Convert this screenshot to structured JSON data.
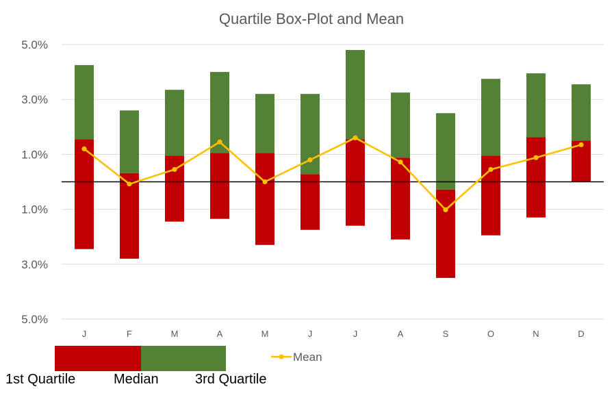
{
  "chart_data": {
    "type": "bar",
    "title": "Quartile Box-Plot and Mean",
    "categories": [
      "J",
      "F",
      "M",
      "A",
      "M",
      "J",
      "J",
      "A",
      "S",
      "O",
      "N",
      "D"
    ],
    "y_tick_labels": [
      "5.0%",
      "3.0%",
      "1.0%",
      "1.0%",
      "3.0%",
      "5.0%"
    ],
    "y_tick_values": [
      5,
      3,
      1,
      -1,
      -3,
      -5
    ],
    "ylim": [
      -5,
      5
    ],
    "grid": true,
    "zero_line": true,
    "series": [
      {
        "name": "1st Quartile",
        "role": "lower-box",
        "color": "#C00000",
        "bottom": [
          -2.45,
          -2.8,
          -1.45,
          -1.35,
          -2.3,
          -1.75,
          -1.6,
          -2.1,
          -3.5,
          -1.95,
          -1.3,
          0.0
        ],
        "top": [
          1.55,
          0.32,
          0.95,
          1.05,
          1.05,
          0.28,
          1.55,
          0.88,
          -0.28,
          0.95,
          1.62,
          1.5
        ]
      },
      {
        "name": "3rd Quartile",
        "role": "upper-box",
        "color": "#538135",
        "bottom": [
          1.55,
          0.32,
          0.95,
          1.05,
          1.05,
          0.28,
          1.55,
          0.88,
          -0.28,
          0.95,
          1.62,
          1.5
        ],
        "top": [
          4.25,
          2.6,
          3.35,
          4.0,
          3.2,
          3.2,
          4.8,
          3.25,
          2.5,
          3.75,
          3.95,
          3.55
        ]
      },
      {
        "name": "Mean",
        "role": "line",
        "color": "#FFC000",
        "values": [
          1.2,
          -0.08,
          0.45,
          1.45,
          0.0,
          0.8,
          1.6,
          0.72,
          -1.02,
          0.45,
          0.88,
          1.35
        ]
      }
    ],
    "legend": {
      "placement": "bottom",
      "line_label": "Mean",
      "box_colors": [
        "#C00000",
        "#538135"
      ]
    },
    "bottom_labels": {
      "q1": "1st Quartile",
      "median": "Median",
      "q3": "3rd Quartile"
    }
  }
}
